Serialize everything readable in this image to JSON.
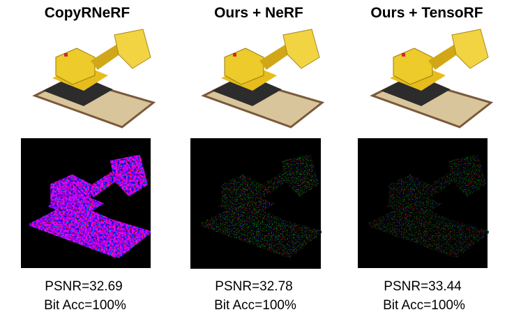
{
  "columns": [
    {
      "title": "CopyRNeRF",
      "psnr": "PSNR=32.69",
      "bit_acc": "Bit Acc=100%"
    },
    {
      "title": "Ours + NeRF",
      "psnr": "PSNR=32.78",
      "bit_acc": "Bit Acc=100%"
    },
    {
      "title": "Ours + TensoRF",
      "psnr": "PSNR=33.44",
      "bit_acc": "Bit Acc=100%"
    }
  ]
}
